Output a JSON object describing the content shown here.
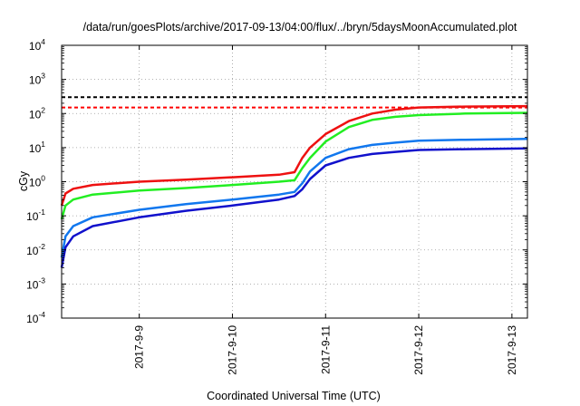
{
  "chart_data": {
    "type": "line",
    "title": "/data/run/goesPlots/archive/2017-09-13/04:00/flux/../bryn/5daysMoonAccumulated.plot",
    "xlabel": "Coordinated Universal Time (UTC)",
    "ylabel": "cGy",
    "y_scale": "log",
    "ylim": [
      0.0001,
      10000
    ],
    "y_ticks": [
      {
        "value": 0.0001,
        "base": "10",
        "exp": "-4"
      },
      {
        "value": 0.001,
        "base": "10",
        "exp": "-3"
      },
      {
        "value": 0.01,
        "base": "10",
        "exp": "-2"
      },
      {
        "value": 0.1,
        "base": "10",
        "exp": "-1"
      },
      {
        "value": 1,
        "base": "10",
        "exp": "0"
      },
      {
        "value": 10,
        "base": "10",
        "exp": "1"
      },
      {
        "value": 100,
        "base": "10",
        "exp": "2"
      },
      {
        "value": 1000,
        "base": "10",
        "exp": "3"
      },
      {
        "value": 10000,
        "base": "10",
        "exp": "4"
      }
    ],
    "xlim": [
      "2017-09-08 04:00",
      "2017-09-13 04:00"
    ],
    "x_ticks": [
      {
        "value": "2017-09-09 00:00",
        "label": "2017-9-9"
      },
      {
        "value": "2017-09-10 00:00",
        "label": "2017-9-10"
      },
      {
        "value": "2017-09-11 00:00",
        "label": "2017-9-11"
      },
      {
        "value": "2017-09-12 00:00",
        "label": "2017-9-12"
      },
      {
        "value": "2017-09-13 00:00",
        "label": "2017-9-13"
      }
    ],
    "grid": true,
    "grid_style": "dotted",
    "legend": "none",
    "threshold_lines": [
      {
        "value": 300,
        "color": "#000000",
        "style": "dashed"
      },
      {
        "value": 150,
        "color": "#ff0000",
        "style": "dashed"
      }
    ],
    "series": [
      {
        "color": "#ee1111",
        "points": [
          [
            "2017-09-08 04:00",
            0.2
          ],
          [
            "2017-09-08 05:00",
            0.45
          ],
          [
            "2017-09-08 07:00",
            0.62
          ],
          [
            "2017-09-08 12:00",
            0.8
          ],
          [
            "2017-09-09 00:00",
            1.0
          ],
          [
            "2017-09-09 12:00",
            1.15
          ],
          [
            "2017-09-10 00:00",
            1.35
          ],
          [
            "2017-09-10 12:00",
            1.6
          ],
          [
            "2017-09-10 16:00",
            1.9
          ],
          [
            "2017-09-10 18:00",
            5
          ],
          [
            "2017-09-10 20:00",
            10
          ],
          [
            "2017-09-11 00:00",
            25
          ],
          [
            "2017-09-11 06:00",
            60
          ],
          [
            "2017-09-11 12:00",
            100
          ],
          [
            "2017-09-11 18:00",
            130
          ],
          [
            "2017-09-12 00:00",
            150
          ],
          [
            "2017-09-12 12:00",
            160
          ],
          [
            "2017-09-13 04:00",
            165
          ]
        ]
      },
      {
        "color": "#22ee22",
        "points": [
          [
            "2017-09-08 04:00",
            0.08
          ],
          [
            "2017-09-08 05:00",
            0.2
          ],
          [
            "2017-09-08 07:00",
            0.3
          ],
          [
            "2017-09-08 12:00",
            0.42
          ],
          [
            "2017-09-09 00:00",
            0.55
          ],
          [
            "2017-09-09 12:00",
            0.65
          ],
          [
            "2017-09-10 00:00",
            0.8
          ],
          [
            "2017-09-10 12:00",
            1.0
          ],
          [
            "2017-09-10 16:00",
            1.1
          ],
          [
            "2017-09-10 18:00",
            2.5
          ],
          [
            "2017-09-10 20:00",
            5
          ],
          [
            "2017-09-11 00:00",
            15
          ],
          [
            "2017-09-11 06:00",
            40
          ],
          [
            "2017-09-11 12:00",
            65
          ],
          [
            "2017-09-11 18:00",
            80
          ],
          [
            "2017-09-12 00:00",
            90
          ],
          [
            "2017-09-12 12:00",
            100
          ],
          [
            "2017-09-13 04:00",
            105
          ]
        ]
      },
      {
        "color": "#1177ee",
        "points": [
          [
            "2017-09-08 04:00",
            0.006
          ],
          [
            "2017-09-08 05:00",
            0.025
          ],
          [
            "2017-09-08 07:00",
            0.05
          ],
          [
            "2017-09-08 12:00",
            0.09
          ],
          [
            "2017-09-09 00:00",
            0.15
          ],
          [
            "2017-09-09 12:00",
            0.22
          ],
          [
            "2017-09-10 00:00",
            0.3
          ],
          [
            "2017-09-10 12:00",
            0.42
          ],
          [
            "2017-09-10 16:00",
            0.5
          ],
          [
            "2017-09-10 18:00",
            0.9
          ],
          [
            "2017-09-10 20:00",
            2
          ],
          [
            "2017-09-11 00:00",
            5
          ],
          [
            "2017-09-11 06:00",
            9
          ],
          [
            "2017-09-11 12:00",
            12
          ],
          [
            "2017-09-11 18:00",
            14
          ],
          [
            "2017-09-12 00:00",
            16
          ],
          [
            "2017-09-12 12:00",
            17
          ],
          [
            "2017-09-13 04:00",
            18
          ]
        ]
      },
      {
        "color": "#1111cc",
        "points": [
          [
            "2017-09-08 04:00",
            0.003
          ],
          [
            "2017-09-08 05:00",
            0.012
          ],
          [
            "2017-09-08 07:00",
            0.025
          ],
          [
            "2017-09-08 12:00",
            0.05
          ],
          [
            "2017-09-09 00:00",
            0.09
          ],
          [
            "2017-09-09 12:00",
            0.14
          ],
          [
            "2017-09-10 00:00",
            0.2
          ],
          [
            "2017-09-10 12:00",
            0.3
          ],
          [
            "2017-09-10 16:00",
            0.38
          ],
          [
            "2017-09-10 18:00",
            0.6
          ],
          [
            "2017-09-10 20:00",
            1.2
          ],
          [
            "2017-09-11 00:00",
            3
          ],
          [
            "2017-09-11 06:00",
            5
          ],
          [
            "2017-09-11 12:00",
            6.5
          ],
          [
            "2017-09-11 18:00",
            7.5
          ],
          [
            "2017-09-12 00:00",
            8.5
          ],
          [
            "2017-09-12 12:00",
            9
          ],
          [
            "2017-09-13 04:00",
            9.5
          ]
        ]
      }
    ]
  }
}
